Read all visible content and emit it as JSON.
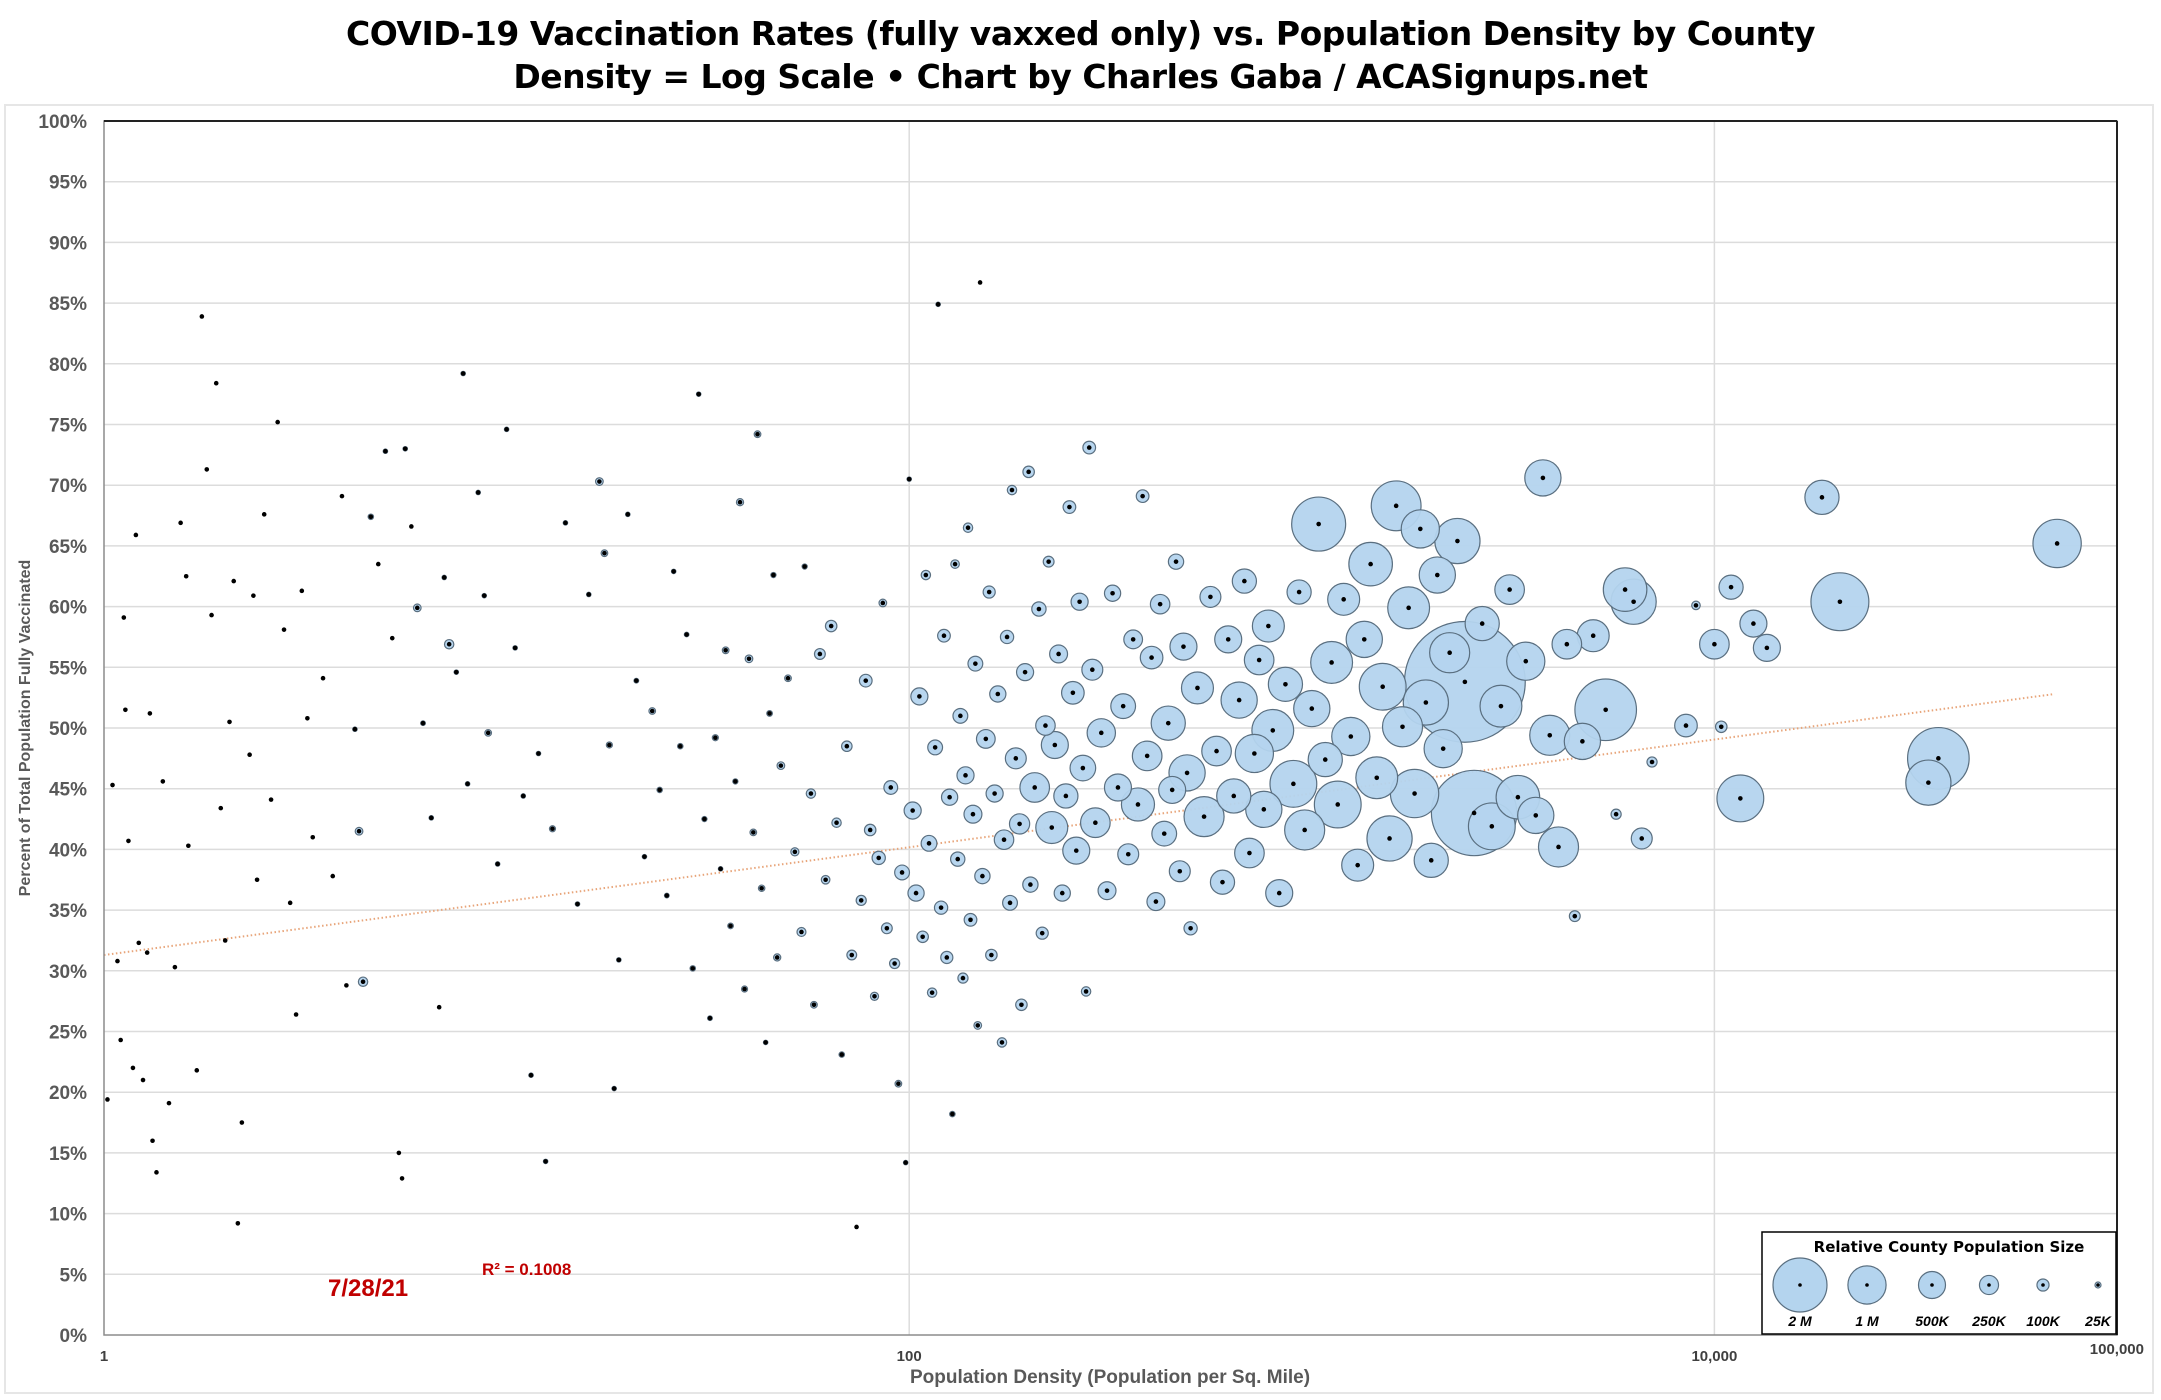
{
  "chart_data": {
    "type": "scatter",
    "subtype": "bubble",
    "title": "COVID-19 Vaccination Rates (fully vaxxed only) vs. Population Density by County",
    "subtitle": "Density = Log Scale  •  Chart by Charles Gaba / ACASignups.net",
    "xlabel": "Population Density (Population per Sq. Mile)",
    "ylabel": "Percent of Total Population Fully Vaccinated",
    "x_scale": "log",
    "xlim": [
      1,
      100000
    ],
    "x_ticks": [
      1,
      100,
      10000,
      100000
    ],
    "x_tick_labels": [
      "1",
      "100",
      "10,000",
      "100,000"
    ],
    "ylim": [
      0,
      100
    ],
    "y_ticks": [
      0,
      5,
      10,
      15,
      20,
      25,
      30,
      35,
      40,
      45,
      50,
      55,
      60,
      65,
      70,
      75,
      80,
      85,
      90,
      95,
      100
    ],
    "y_tick_labels": [
      "0%",
      "5%",
      "10%",
      "15%",
      "20%",
      "25%",
      "30%",
      "35%",
      "40%",
      "45%",
      "50%",
      "55%",
      "60%",
      "65%",
      "70%",
      "75%",
      "80%",
      "85%",
      "90%",
      "95%",
      "100%"
    ],
    "grid": "horizontal + vertical major",
    "bubble_fill": "#b4d4ee",
    "bubble_stroke": "#5a6f80",
    "center_dot": "#000000",
    "point_format": [
      "density_per_sq_mile",
      "pct_fully_vaccinated",
      "population_thousands"
    ],
    "points": [
      [
        1.02,
        19.4,
        2
      ],
      [
        1.05,
        45.3,
        3
      ],
      [
        1.08,
        30.8,
        2
      ],
      [
        1.1,
        24.3,
        2
      ],
      [
        1.12,
        59.1,
        3
      ],
      [
        1.13,
        51.5,
        2
      ],
      [
        1.15,
        40.7,
        3
      ],
      [
        1.18,
        22,
        2
      ],
      [
        1.2,
        65.9,
        2
      ],
      [
        1.22,
        32.3,
        2
      ],
      [
        1.25,
        21,
        3
      ],
      [
        1.28,
        31.5,
        2
      ],
      [
        1.3,
        51.2,
        3
      ],
      [
        1.32,
        16,
        2
      ],
      [
        1.35,
        13.4,
        2
      ],
      [
        1.4,
        45.6,
        3
      ],
      [
        1.45,
        19.1,
        2
      ],
      [
        1.5,
        30.3,
        2
      ],
      [
        1.55,
        66.9,
        2
      ],
      [
        1.6,
        62.5,
        3
      ],
      [
        1.62,
        40.3,
        2
      ],
      [
        1.7,
        21.8,
        2
      ],
      [
        1.75,
        83.9,
        2
      ],
      [
        1.8,
        71.3,
        3
      ],
      [
        1.85,
        59.3,
        2
      ],
      [
        1.9,
        78.4,
        2
      ],
      [
        1.95,
        43.4,
        3
      ],
      [
        2.0,
        32.5,
        2
      ],
      [
        2.05,
        50.5,
        4
      ],
      [
        2.1,
        62.1,
        3
      ],
      [
        2.15,
        9.2,
        2
      ],
      [
        2.2,
        17.5,
        2
      ],
      [
        2.3,
        47.8,
        3
      ],
      [
        2.35,
        60.9,
        3
      ],
      [
        2.4,
        37.5,
        4
      ],
      [
        2.5,
        67.6,
        2
      ],
      [
        2.6,
        44.1,
        3
      ],
      [
        2.7,
        75.2,
        2
      ],
      [
        2.8,
        58.1,
        3
      ],
      [
        2.9,
        35.6,
        4
      ],
      [
        3.0,
        26.4,
        3
      ],
      [
        3.1,
        61.3,
        3
      ],
      [
        3.2,
        50.8,
        3
      ],
      [
        3.3,
        41,
        4
      ],
      [
        3.5,
        54.1,
        3
      ],
      [
        3.7,
        37.8,
        5
      ],
      [
        3.9,
        69.1,
        3
      ],
      [
        4.0,
        28.8,
        4
      ],
      [
        4.2,
        49.9,
        6
      ],
      [
        4.3,
        41.5,
        40
      ],
      [
        4.4,
        29.1,
        60
      ],
      [
        4.6,
        67.4,
        20
      ],
      [
        4.8,
        63.5,
        5
      ],
      [
        5.0,
        72.8,
        8
      ],
      [
        5.2,
        57.4,
        5
      ],
      [
        5.4,
        15,
        3
      ],
      [
        5.5,
        12.9,
        3
      ],
      [
        5.6,
        73,
        6
      ],
      [
        5.8,
        66.6,
        5
      ],
      [
        6.0,
        59.9,
        40
      ],
      [
        6.2,
        50.4,
        15
      ],
      [
        6.5,
        42.6,
        8
      ],
      [
        6.8,
        27,
        5
      ],
      [
        7.0,
        62.4,
        6
      ],
      [
        7.2,
        56.9,
        60
      ],
      [
        7.5,
        54.6,
        8
      ],
      [
        7.8,
        79.2,
        10
      ],
      [
        8.0,
        45.4,
        7
      ],
      [
        8.5,
        69.4,
        6
      ],
      [
        8.8,
        60.9,
        6
      ],
      [
        9.0,
        49.6,
        30
      ],
      [
        9.5,
        38.8,
        6
      ],
      [
        10,
        74.6,
        6
      ],
      [
        10.5,
        56.6,
        8
      ],
      [
        11,
        44.4,
        12
      ],
      [
        11.5,
        21.4,
        10
      ],
      [
        12,
        47.9,
        8
      ],
      [
        12.5,
        14.3,
        6
      ],
      [
        13,
        41.7,
        25
      ],
      [
        14,
        66.9,
        8
      ],
      [
        15,
        35.5,
        10
      ],
      [
        16,
        61,
        12
      ],
      [
        17,
        70.3,
        40
      ],
      [
        17.5,
        64.4,
        30
      ],
      [
        18,
        48.6,
        25
      ],
      [
        18.5,
        20.3,
        8
      ],
      [
        19,
        30.9,
        12
      ],
      [
        20,
        67.6,
        8
      ],
      [
        21,
        53.9,
        15
      ],
      [
        22,
        39.4,
        12
      ],
      [
        23,
        51.4,
        30
      ],
      [
        24,
        44.9,
        20
      ],
      [
        25,
        36.2,
        15
      ],
      [
        26,
        62.9,
        10
      ],
      [
        27,
        48.5,
        20
      ],
      [
        28,
        57.7,
        14
      ],
      [
        29,
        30.2,
        20
      ],
      [
        30,
        77.5,
        10
      ],
      [
        31,
        42.5,
        18
      ],
      [
        32,
        26.1,
        15
      ],
      [
        33,
        49.2,
        25
      ],
      [
        34,
        38.4,
        12
      ],
      [
        35,
        56.4,
        30
      ],
      [
        36,
        33.7,
        22
      ],
      [
        37,
        45.6,
        18
      ],
      [
        38,
        68.6,
        35
      ],
      [
        39,
        28.5,
        25
      ],
      [
        40,
        55.7,
        40
      ],
      [
        41,
        41.4,
        30
      ],
      [
        42,
        74.2,
        30
      ],
      [
        43,
        36.8,
        28
      ],
      [
        44,
        24.1,
        12
      ],
      [
        45,
        51.2,
        22
      ],
      [
        46,
        62.6,
        18
      ],
      [
        47,
        31.1,
        35
      ],
      [
        48,
        46.9,
        40
      ],
      [
        50,
        54.1,
        30
      ],
      [
        52,
        39.8,
        45
      ],
      [
        54,
        33.2,
        55
      ],
      [
        55,
        63.3,
        18
      ],
      [
        57,
        44.6,
        60
      ],
      [
        58,
        27.2,
        30
      ],
      [
        60,
        56.1,
        80
      ],
      [
        62,
        37.5,
        50
      ],
      [
        64,
        58.4,
        90
      ],
      [
        66,
        42.2,
        60
      ],
      [
        68,
        23.1,
        20
      ],
      [
        70,
        48.5,
        75
      ],
      [
        72,
        31.3,
        65
      ],
      [
        74,
        8.9,
        3
      ],
      [
        76,
        35.8,
        70
      ],
      [
        78,
        53.9,
        110
      ],
      [
        80,
        41.6,
        90
      ],
      [
        82,
        27.9,
        45
      ],
      [
        84,
        39.3,
        120
      ],
      [
        86,
        60.3,
        40
      ],
      [
        88,
        33.5,
        80
      ],
      [
        90,
        45.1,
        130
      ],
      [
        92,
        30.6,
        70
      ],
      [
        94,
        20.7,
        30
      ],
      [
        96,
        38.1,
        150
      ],
      [
        98,
        14.2,
        8
      ],
      [
        100,
        70.5,
        6
      ],
      [
        102,
        43.2,
        200
      ],
      [
        104,
        36.4,
        180
      ],
      [
        106,
        52.6,
        200
      ],
      [
        108,
        32.8,
        90
      ],
      [
        110,
        62.6,
        60
      ],
      [
        112,
        40.5,
        170
      ],
      [
        114,
        28.2,
        60
      ],
      [
        116,
        48.4,
        150
      ],
      [
        118,
        84.9,
        6
      ],
      [
        120,
        35.2,
        120
      ],
      [
        122,
        57.6,
        110
      ],
      [
        124,
        31.1,
        100
      ],
      [
        126,
        44.3,
        180
      ],
      [
        128,
        18.2,
        20
      ],
      [
        130,
        63.5,
        50
      ],
      [
        132,
        39.2,
        140
      ],
      [
        134,
        51,
        150
      ],
      [
        136,
        29.4,
        70
      ],
      [
        138,
        46.1,
        200
      ],
      [
        140,
        66.5,
        60
      ],
      [
        142,
        34.2,
        110
      ],
      [
        144,
        42.9,
        220
      ],
      [
        146,
        55.3,
        150
      ],
      [
        148,
        25.5,
        40
      ],
      [
        150,
        86.7,
        5
      ],
      [
        152,
        37.8,
        160
      ],
      [
        155,
        49.1,
        240
      ],
      [
        158,
        61.2,
        100
      ],
      [
        160,
        31.3,
        90
      ],
      [
        163,
        44.6,
        200
      ],
      [
        166,
        52.8,
        180
      ],
      [
        170,
        24.1,
        60
      ],
      [
        172,
        40.8,
        260
      ],
      [
        175,
        57.5,
        120
      ],
      [
        178,
        35.6,
        150
      ],
      [
        180,
        69.6,
        60
      ],
      [
        184,
        47.5,
        300
      ],
      [
        188,
        42.1,
        280
      ],
      [
        190,
        27.2,
        90
      ],
      [
        194,
        54.6,
        200
      ],
      [
        198,
        71.1,
        90
      ],
      [
        200,
        37.1,
        160
      ],
      [
        205,
        45.1,
        600
      ],
      [
        210,
        59.8,
        140
      ],
      [
        214,
        33.1,
        100
      ],
      [
        218,
        50.2,
        260
      ],
      [
        222,
        63.7,
        80
      ],
      [
        226,
        41.8,
        700
      ],
      [
        230,
        48.6,
        500
      ],
      [
        235,
        56.1,
        220
      ],
      [
        240,
        36.4,
        180
      ],
      [
        245,
        44.4,
        400
      ],
      [
        250,
        68.2,
        110
      ],
      [
        255,
        52.9,
        350
      ],
      [
        260,
        39.9,
        500
      ],
      [
        265,
        60.4,
        200
      ],
      [
        270,
        46.7,
        450
      ],
      [
        275,
        28.3,
        60
      ],
      [
        280,
        73.1,
        110
      ],
      [
        285,
        54.8,
        300
      ],
      [
        290,
        42.2,
        600
      ],
      [
        300,
        49.6,
        550
      ],
      [
        310,
        36.6,
        220
      ],
      [
        320,
        61.1,
        180
      ],
      [
        330,
        45.1,
        500
      ],
      [
        340,
        51.8,
        420
      ],
      [
        350,
        39.6,
        300
      ],
      [
        360,
        57.3,
        240
      ],
      [
        370,
        43.7,
        750
      ],
      [
        380,
        69.1,
        110
      ],
      [
        390,
        47.7,
        600
      ],
      [
        400,
        55.8,
        350
      ],
      [
        410,
        35.7,
        220
      ],
      [
        420,
        60.2,
        260
      ],
      [
        430,
        41.3,
        420
      ],
      [
        440,
        50.4,
        800
      ],
      [
        450,
        44.9,
        500
      ],
      [
        460,
        63.7,
        160
      ],
      [
        470,
        38.2,
        300
      ],
      [
        480,
        56.7,
        500
      ],
      [
        490,
        46.3,
        900
      ],
      [
        500,
        33.5,
        120
      ],
      [
        520,
        53.3,
        700
      ],
      [
        540,
        42.7,
        1100
      ],
      [
        560,
        60.8,
        300
      ],
      [
        580,
        48.1,
        600
      ],
      [
        600,
        37.3,
        400
      ],
      [
        620,
        57.3,
        500
      ],
      [
        640,
        44.4,
        800
      ],
      [
        660,
        52.3,
        900
      ],
      [
        680,
        62.1,
        400
      ],
      [
        700,
        39.7,
        600
      ],
      [
        720,
        47.9,
        1000
      ],
      [
        740,
        55.6,
        600
      ],
      [
        760,
        43.3,
        900
      ],
      [
        780,
        58.4,
        700
      ],
      [
        800,
        49.8,
        1200
      ],
      [
        830,
        36.4,
        500
      ],
      [
        860,
        53.6,
        800
      ],
      [
        900,
        45.4,
        1500
      ],
      [
        930,
        61.2,
        400
      ],
      [
        960,
        41.6,
        1100
      ],
      [
        1000,
        51.6,
        900
      ],
      [
        1040,
        66.8,
        2000
      ],
      [
        1080,
        47.4,
        800
      ],
      [
        1120,
        55.4,
        1200
      ],
      [
        1160,
        43.7,
        1500
      ],
      [
        1200,
        60.6,
        700
      ],
      [
        1250,
        49.3,
        1000
      ],
      [
        1300,
        38.7,
        700
      ],
      [
        1350,
        57.3,
        900
      ],
      [
        1400,
        63.5,
        1300
      ],
      [
        1450,
        45.9,
        1200
      ],
      [
        1500,
        53.4,
        1500
      ],
      [
        1560,
        40.9,
        1400
      ],
      [
        1620,
        68.3,
        1700
      ],
      [
        1680,
        50.1,
        1100
      ],
      [
        1740,
        59.9,
        1200
      ],
      [
        1800,
        44.6,
        1600
      ],
      [
        1860,
        66.4,
        1000
      ],
      [
        1920,
        52.1,
        1400
      ],
      [
        1980,
        39.1,
        800
      ],
      [
        2050,
        62.6,
        900
      ],
      [
        2120,
        48.3,
        1000
      ],
      [
        2200,
        56.2,
        1100
      ],
      [
        2300,
        65.4,
        1400
      ],
      [
        2400,
        53.8,
        10000
      ],
      [
        2530,
        43,
        5000
      ],
      [
        2650,
        58.6,
        800
      ],
      [
        2800,
        41.9,
        1500
      ],
      [
        2950,
        51.8,
        1200
      ],
      [
        3100,
        61.4,
        600
      ],
      [
        3250,
        44.3,
        1300
      ],
      [
        3400,
        55.5,
        1000
      ],
      [
        3600,
        42.8,
        900
      ],
      [
        3750,
        70.6,
        900
      ],
      [
        3900,
        49.4,
        1100
      ],
      [
        4100,
        40.2,
        1100
      ],
      [
        4300,
        56.9,
        600
      ],
      [
        4500,
        34.5,
        80
      ],
      [
        4700,
        48.9,
        900
      ],
      [
        5000,
        57.6,
        700
      ],
      [
        5370,
        51.5,
        2600
      ],
      [
        5700,
        42.9,
        70
      ],
      [
        6000,
        61.4,
        1300
      ],
      [
        6300,
        60.4,
        1400
      ],
      [
        6600,
        40.9,
        300
      ],
      [
        7000,
        47.2,
        70
      ],
      [
        8500,
        50.2,
        350
      ],
      [
        9000,
        60.1,
        50
      ],
      [
        10000,
        56.9,
        600
      ],
      [
        10400,
        50.1,
        90
      ],
      [
        11000,
        61.6,
        400
      ],
      [
        11600,
        44.2,
        1500
      ],
      [
        12500,
        58.6,
        500
      ],
      [
        13500,
        56.6,
        500
      ],
      [
        18500,
        69,
        800
      ],
      [
        20500,
        60.4,
        2300
      ],
      [
        34000,
        45.5,
        1400
      ],
      [
        36000,
        47.5,
        2600
      ],
      [
        71000,
        65.2,
        1600
      ]
    ],
    "trendline": {
      "type": "logarithmic",
      "style": "dotted",
      "color": "#e8a57a",
      "from": [
        1,
        31.3
      ],
      "to": [
        70000,
        52.8
      ],
      "r_squared_label": "R² = 0.1008"
    },
    "annotations": {
      "date": "7/28/21",
      "r_squared": "R² = 0.1008"
    },
    "legend": {
      "title": "Relative County Population Size",
      "placement": "bottom-right",
      "items": [
        {
          "label": "2 M",
          "population_thousands": 2000
        },
        {
          "label": "1 M",
          "population_thousands": 1000
        },
        {
          "label": "500K",
          "population_thousands": 500
        },
        {
          "label": "250K",
          "population_thousands": 250
        },
        {
          "label": "100K",
          "population_thousands": 100
        },
        {
          "label": "25K",
          "population_thousands": 25
        }
      ]
    }
  }
}
